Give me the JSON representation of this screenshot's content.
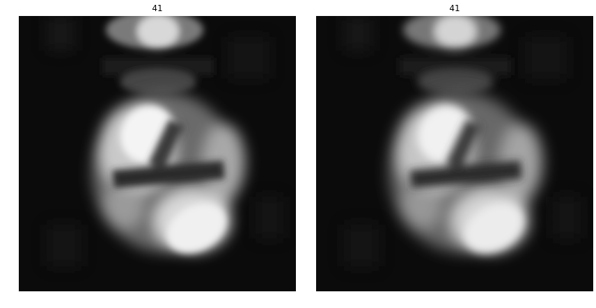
{
  "panels": [
    {
      "title": "41",
      "image": {
        "icon": "grayscale-slice-image",
        "colors": {
          "background": "#0b0b0b",
          "bright": "#f4f4f4",
          "mid": "#8a8a8a",
          "dark": "#2a2a2a"
        }
      }
    },
    {
      "title": "41",
      "image": {
        "icon": "grayscale-slice-image",
        "colors": {
          "background": "#0b0b0b",
          "bright": "#f1f1f1",
          "mid": "#878787",
          "dark": "#2a2a2a"
        }
      }
    }
  ]
}
